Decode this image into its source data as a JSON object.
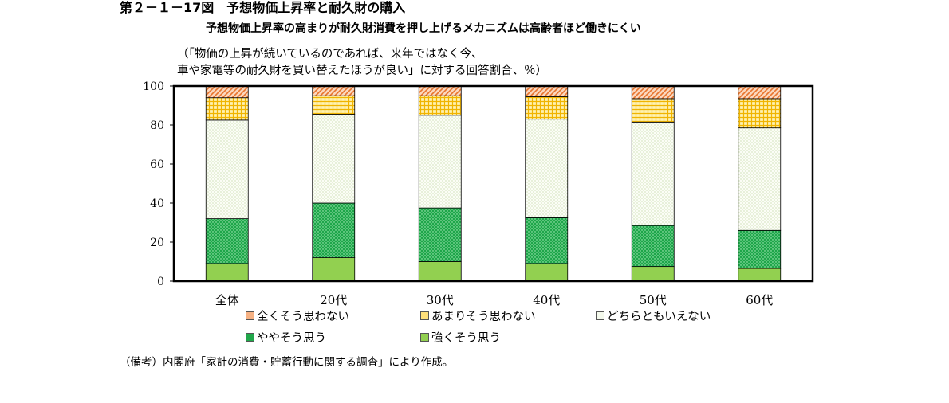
{
  "title": "第２－１－17図　予想物価上昇率と耐久財の購入",
  "subtitle": "予想物価上昇率の高まりが耐久財消費を押し上げるメカニズムは高齢者ほど働きにくい",
  "unit_line1": "（「物価の上昇が続いているのであれば、来年ではなく今、",
  "unit_line2": "車や家電等の耐久財を買い替えたほうが良い」に対する回答割合、％）",
  "note": "（備考）内閣府「家計の消費・貯蓄行動に関する調査」により作成。",
  "colors": {
    "strongly_agree": "#92d050",
    "somewhat_agree": "#21a74a",
    "neutral": "#f1f7e6",
    "somewhat_disagree": "#ffe07a",
    "strongly_disagree": "#f6b183"
  },
  "chart_data": {
    "type": "bar",
    "stacked": true,
    "categories": [
      "全体",
      "20代",
      "30代",
      "40代",
      "50代",
      "60代"
    ],
    "ylim": [
      0,
      100
    ],
    "yticks": [
      0,
      20,
      40,
      60,
      80,
      100
    ],
    "grid": false,
    "series": [
      {
        "key": "strongly_agree",
        "name": "強くそう思う",
        "values": [
          9,
          12,
          10,
          9,
          7.5,
          6.5
        ]
      },
      {
        "key": "somewhat_agree",
        "name": "ややそう思う",
        "values": [
          23,
          28,
          27.5,
          23.5,
          21,
          19.5
        ]
      },
      {
        "key": "neutral",
        "name": "どちらともいえない",
        "values": [
          50.5,
          45.5,
          47.5,
          50.5,
          53,
          52.5
        ]
      },
      {
        "key": "somewhat_disagree",
        "name": "あまりそう思わない",
        "values": [
          11.5,
          9.5,
          10,
          11.5,
          12,
          15
        ]
      },
      {
        "key": "strongly_disagree",
        "name": "全くそう思わない",
        "values": [
          6,
          5,
          5,
          5.5,
          6.5,
          6.5
        ]
      }
    ]
  },
  "legend": [
    {
      "key": "strongly_disagree",
      "label": "全くそう思わない"
    },
    {
      "key": "somewhat_disagree",
      "label": "あまりそう思わない"
    },
    {
      "key": "neutral",
      "label": "どちらともいえない"
    },
    {
      "key": "somewhat_agree",
      "label": "ややそう思う"
    },
    {
      "key": "strongly_agree",
      "label": "強くそう思う"
    }
  ]
}
